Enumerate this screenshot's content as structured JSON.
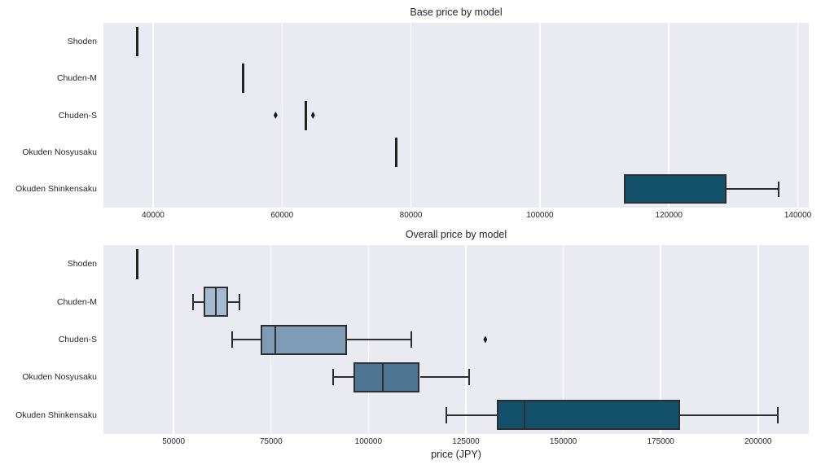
{
  "figure": {
    "background": "#ffffff",
    "axes_background": "#eaeaf2",
    "grid_color": "#ffffff",
    "edge_color": "#2e2e2e",
    "text_color": "#262626"
  },
  "chart_data": [
    {
      "type": "box",
      "orientation": "horizontal",
      "title": "Base price by model",
      "xlabel": "",
      "categories": [
        "Shoden",
        "Chuden-M",
        "Chuden-S",
        "Okuden Nosyusaku",
        "Okuden Shinkensaku"
      ],
      "xlim": [
        32300,
        141700
      ],
      "xticks": [
        40000,
        60000,
        80000,
        100000,
        120000,
        140000
      ],
      "xticklabels": [
        "40000",
        "60000",
        "80000",
        "100000",
        "120000",
        "140000"
      ],
      "grid": true,
      "series": [
        {
          "model": "Shoden",
          "whislo": 37500,
          "q1": 37500,
          "med": 37500,
          "q3": 37500,
          "whishi": 37500,
          "outliers": [],
          "color": "#c8d6e3"
        },
        {
          "model": "Chuden-M",
          "whislo": 54000,
          "q1": 54000,
          "med": 54000,
          "q3": 54000,
          "whishi": 54000,
          "outliers": [],
          "color": "#a3bad0"
        },
        {
          "model": "Chuden-S",
          "whislo": 63700,
          "q1": 63700,
          "med": 63700,
          "q3": 63700,
          "whishi": 63700,
          "outliers": [
            59000,
            64800
          ],
          "color": "#7e9cb5"
        },
        {
          "model": "Okuden Nosyusaku",
          "whislo": 77700,
          "q1": 77700,
          "med": 77700,
          "q3": 77700,
          "whishi": 77700,
          "outliers": [],
          "color": "#4d7693"
        },
        {
          "model": "Okuden Shinkensaku",
          "whislo": 113000,
          "q1": 113000,
          "med": 113000,
          "q3": 129000,
          "whishi": 137000,
          "outliers": [],
          "color": "#13506a"
        }
      ]
    },
    {
      "type": "box",
      "orientation": "horizontal",
      "title": "Overall price by model",
      "xlabel": "price (JPY)",
      "categories": [
        "Shoden",
        "Chuden-M",
        "Chuden-S",
        "Okuden Nosyusaku",
        "Okuden Shinkensaku"
      ],
      "xlim": [
        32000,
        213000
      ],
      "xticks": [
        50000,
        75000,
        100000,
        125000,
        150000,
        175000,
        200000
      ],
      "xticklabels": [
        "50000",
        "75000",
        "100000",
        "125000",
        "150000",
        "175000",
        "200000"
      ],
      "grid": true,
      "series": [
        {
          "model": "Shoden",
          "whislo": 40600,
          "q1": 40600,
          "med": 40600,
          "q3": 40600,
          "whishi": 40600,
          "outliers": [],
          "color": "#c8d6e3"
        },
        {
          "model": "Chuden-M",
          "whislo": 55000,
          "q1": 57800,
          "med": 60900,
          "q3": 63900,
          "whishi": 66800,
          "outliers": [],
          "color": "#a3bad0"
        },
        {
          "model": "Chuden-S",
          "whislo": 65000,
          "q1": 72400,
          "med": 76100,
          "q3": 94400,
          "whishi": 111000,
          "outliers": [
            130000
          ],
          "color": "#7e9cb5"
        },
        {
          "model": "Okuden Nosyusaku",
          "whislo": 91000,
          "q1": 96200,
          "med": 103700,
          "q3": 113200,
          "whishi": 125800,
          "outliers": [],
          "color": "#4d7693"
        },
        {
          "model": "Okuden Shinkensaku",
          "whislo": 120000,
          "q1": 133000,
          "med": 140000,
          "q3": 180000,
          "whishi": 205000,
          "outliers": [],
          "color": "#13506a"
        }
      ]
    }
  ]
}
